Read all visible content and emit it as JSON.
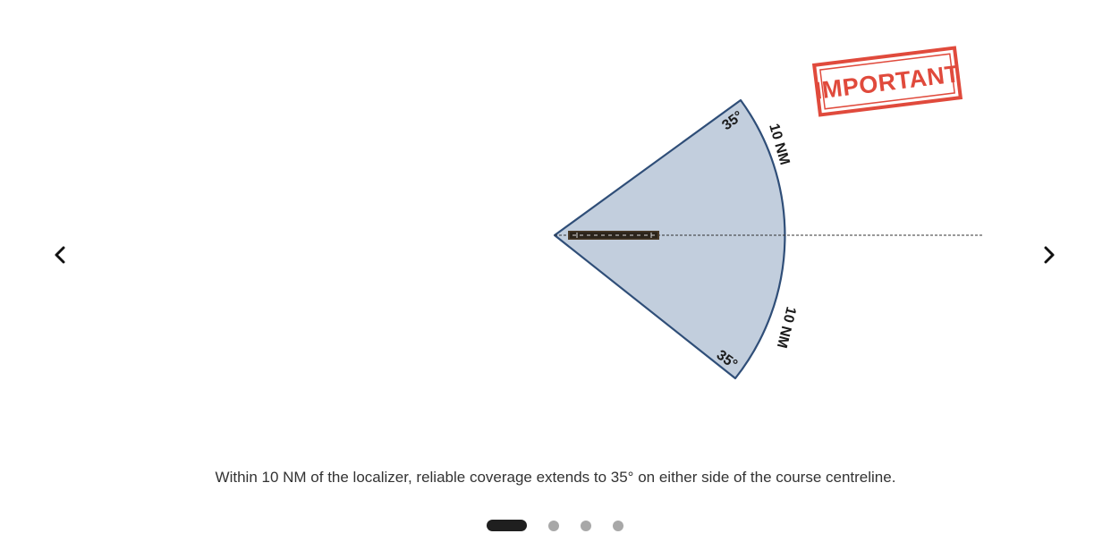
{
  "carousel": {
    "prev_icon": "chevron-left-icon",
    "next_icon": "chevron-right-icon",
    "active_slide": 1,
    "slide_count": 4
  },
  "slide": {
    "stamp_text": "IMPORTANT",
    "top_angle_label": "35°",
    "bottom_angle_label": "35°",
    "top_range_label": "10 NM",
    "bottom_range_label": "10 NM",
    "caption": "Within 10 NM of the localizer, reliable coverage extends to 35° on either side of the course centreline."
  },
  "colors": {
    "sector_fill": "#c2cedd",
    "sector_stroke": "#2f4e78",
    "stamp": "#e04a3c",
    "active_dot": "#1f1f1f",
    "inactive_dot": "#a8a8a8",
    "caption_text": "#333333"
  }
}
